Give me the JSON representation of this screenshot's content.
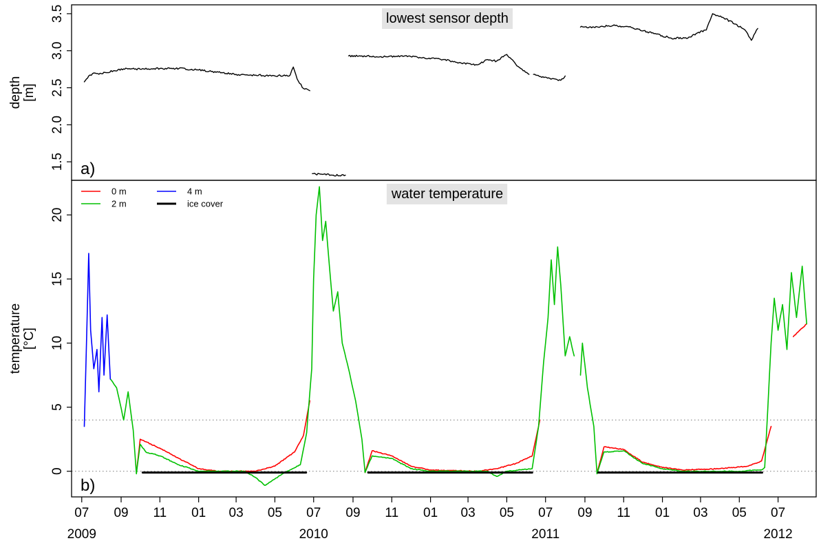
{
  "chart_data": [
    {
      "panel": "a)",
      "type": "line",
      "title": "lowest sensor depth",
      "ylabel": "depth",
      "yunit": "[m]",
      "ylim": [
        1.25,
        3.62
      ],
      "yticks": [
        "1.5",
        "2.0",
        "2.5",
        "3.0",
        "3.5"
      ],
      "xlim": [
        "2009-06-15",
        "2012-08-30"
      ],
      "grid": false,
      "series": [
        {
          "color": "#000000",
          "segments": [
            [
              [
                "2009-07-05",
                2.58
              ],
              [
                "2009-07-12",
                2.66
              ],
              [
                "2009-07-20",
                2.7
              ],
              [
                "2009-08-01",
                2.69
              ],
              [
                "2009-08-20",
                2.73
              ],
              [
                "2009-09-10",
                2.76
              ],
              [
                "2009-10-01",
                2.75
              ],
              [
                "2009-11-01",
                2.76
              ],
              [
                "2009-12-01",
                2.76
              ],
              [
                "2010-01-01",
                2.74
              ],
              [
                "2010-02-01",
                2.71
              ],
              [
                "2010-03-01",
                2.68
              ],
              [
                "2010-04-01",
                2.67
              ],
              [
                "2010-05-01",
                2.66
              ],
              [
                "2010-05-25",
                2.67
              ],
              [
                "2010-05-30",
                2.78
              ],
              [
                "2010-06-05",
                2.62
              ],
              [
                "2010-06-15",
                2.49
              ],
              [
                "2010-06-25",
                2.46
              ]
            ],
            [
              [
                "2010-06-29",
                1.34
              ],
              [
                "2010-07-15",
                1.33
              ],
              [
                "2010-08-01",
                1.32
              ],
              [
                "2010-08-20",
                1.32
              ]
            ],
            [
              [
                "2010-08-25",
                2.93
              ],
              [
                "2010-09-15",
                2.93
              ],
              [
                "2010-10-15",
                2.92
              ],
              [
                "2010-11-15",
                2.93
              ],
              [
                "2010-12-15",
                2.91
              ],
              [
                "2011-01-15",
                2.89
              ],
              [
                "2011-02-15",
                2.84
              ],
              [
                "2011-03-15",
                2.81
              ],
              [
                "2011-04-01",
                2.88
              ],
              [
                "2011-04-15",
                2.86
              ],
              [
                "2011-05-01",
                2.95
              ],
              [
                "2011-05-15",
                2.82
              ],
              [
                "2011-05-25",
                2.75
              ],
              [
                "2011-06-05",
                2.68
              ]
            ],
            [
              [
                "2011-06-12",
                2.68
              ],
              [
                "2011-06-25",
                2.64
              ],
              [
                "2011-07-15",
                2.62
              ],
              [
                "2011-07-25",
                2.6
              ],
              [
                "2011-08-01",
                2.66
              ]
            ],
            [
              [
                "2011-08-25",
                3.32
              ],
              [
                "2011-09-15",
                3.32
              ],
              [
                "2011-10-15",
                3.34
              ],
              [
                "2011-11-15",
                3.31
              ],
              [
                "2011-12-15",
                3.24
              ],
              [
                "2012-01-15",
                3.17
              ],
              [
                "2012-02-10",
                3.17
              ],
              [
                "2012-02-25",
                3.24
              ],
              [
                "2012-03-10",
                3.28
              ],
              [
                "2012-03-20",
                3.5
              ],
              [
                "2012-04-05",
                3.45
              ],
              [
                "2012-04-25",
                3.36
              ],
              [
                "2012-05-10",
                3.28
              ],
              [
                "2012-05-20",
                3.14
              ],
              [
                "2012-05-30",
                3.3
              ]
            ]
          ]
        }
      ]
    },
    {
      "panel": "b)",
      "type": "line",
      "title": "water temperature",
      "ylabel": "temperature",
      "yunit": "[°C]",
      "ylim": [
        -2.0,
        22.7
      ],
      "yticks": [
        "0",
        "5",
        "10",
        "15",
        "20"
      ],
      "xlim": [
        "2009-06-15",
        "2012-08-30"
      ],
      "grid": false,
      "reference_lines": [
        0,
        4
      ],
      "legend": {
        "position": "top-left",
        "items": [
          {
            "label": "0 m",
            "color": "#ff0000"
          },
          {
            "label": "2 m",
            "color": "#00c000"
          },
          {
            "label": "4 m",
            "color": "#0000ff"
          },
          {
            "label": "ice cover",
            "color": "#000000"
          }
        ]
      },
      "series": [
        {
          "name": "0 m",
          "color": "#ff0000",
          "segments": [
            [
              [
                "2009-09-25",
                -0.1
              ],
              [
                "2009-10-01",
                2.5
              ],
              [
                "2009-10-10",
                2.3
              ],
              [
                "2009-11-01",
                1.8
              ],
              [
                "2009-12-01",
                1.0
              ],
              [
                "2010-01-01",
                0.2
              ],
              [
                "2010-02-01",
                0.0
              ],
              [
                "2010-04-01",
                0.0
              ],
              [
                "2010-05-01",
                0.4
              ],
              [
                "2010-06-01",
                1.5
              ],
              [
                "2010-06-15",
                2.8
              ],
              [
                "2010-06-25",
                5.5
              ]
            ],
            [
              [
                "2010-09-20",
                -0.1
              ],
              [
                "2010-10-01",
                1.6
              ],
              [
                "2010-11-01",
                1.2
              ],
              [
                "2010-12-01",
                0.4
              ],
              [
                "2011-01-01",
                0.1
              ],
              [
                "2011-03-15",
                0.0
              ],
              [
                "2011-04-15",
                0.2
              ],
              [
                "2011-05-15",
                0.6
              ],
              [
                "2011-06-10",
                1.2
              ],
              [
                "2011-06-22",
                4.0
              ]
            ],
            [
              [
                "2011-09-20",
                -0.1
              ],
              [
                "2011-10-01",
                1.9
              ],
              [
                "2011-11-01",
                1.7
              ],
              [
                "2011-12-01",
                0.7
              ],
              [
                "2012-01-01",
                0.3
              ],
              [
                "2012-02-01",
                0.1
              ],
              [
                "2012-04-01",
                0.2
              ],
              [
                "2012-05-15",
                0.4
              ],
              [
                "2012-06-05",
                0.8
              ],
              [
                "2012-06-20",
                3.5
              ]
            ],
            [
              [
                "2012-07-25",
                10.5
              ],
              [
                "2012-08-15",
                11.5
              ]
            ]
          ]
        },
        {
          "name": "2 m",
          "color": "#00c000",
          "segments": [
            [
              [
                "2009-08-15",
                7.2
              ],
              [
                "2009-08-25",
                6.5
              ],
              [
                "2009-09-05",
                4.0
              ],
              [
                "2009-09-12",
                6.2
              ],
              [
                "2009-09-20",
                3.2
              ],
              [
                "2009-09-25",
                -0.2
              ],
              [
                "2009-10-01",
                2.1
              ],
              [
                "2009-10-10",
                1.5
              ],
              [
                "2009-11-01",
                1.2
              ],
              [
                "2009-12-01",
                0.5
              ],
              [
                "2010-01-01",
                0.0
              ],
              [
                "2010-03-15",
                0.0
              ],
              [
                "2010-04-01",
                -0.5
              ],
              [
                "2010-04-15",
                -1.1
              ],
              [
                "2010-05-01",
                -0.6
              ],
              [
                "2010-05-20",
                0.0
              ],
              [
                "2010-06-10",
                0.5
              ],
              [
                "2010-06-20",
                3.0
              ],
              [
                "2010-06-28",
                8.0
              ],
              [
                "2010-07-01",
                15.0
              ],
              [
                "2010-07-05",
                20.0
              ],
              [
                "2010-07-10",
                22.2
              ],
              [
                "2010-07-15",
                18.0
              ],
              [
                "2010-07-20",
                19.5
              ],
              [
                "2010-07-25",
                16.5
              ],
              [
                "2010-08-01",
                12.5
              ],
              [
                "2010-08-08",
                14.0
              ],
              [
                "2010-08-15",
                10.0
              ],
              [
                "2010-08-25",
                8.0
              ],
              [
                "2010-09-05",
                5.5
              ],
              [
                "2010-09-15",
                2.5
              ],
              [
                "2010-09-20",
                -0.1
              ],
              [
                "2010-10-01",
                1.2
              ],
              [
                "2010-11-01",
                1.0
              ],
              [
                "2010-12-01",
                0.2
              ],
              [
                "2011-01-01",
                0.0
              ],
              [
                "2011-04-01",
                0.0
              ],
              [
                "2011-04-15",
                -0.4
              ],
              [
                "2011-05-01",
                0.0
              ],
              [
                "2011-06-10",
                0.2
              ],
              [
                "2011-06-20",
                3.5
              ],
              [
                "2011-06-28",
                8.5
              ],
              [
                "2011-07-05",
                12.0
              ],
              [
                "2011-07-10",
                16.5
              ],
              [
                "2011-07-15",
                13.0
              ],
              [
                "2011-07-20",
                17.5
              ],
              [
                "2011-07-25",
                14.5
              ],
              [
                "2011-08-01",
                9.0
              ],
              [
                "2011-08-08",
                10.5
              ],
              [
                "2011-08-15",
                9.0
              ]
            ],
            [
              [
                "2011-08-25",
                7.5
              ],
              [
                "2011-08-28",
                10.0
              ],
              [
                "2011-09-05",
                6.5
              ],
              [
                "2011-09-15",
                3.5
              ],
              [
                "2011-09-20",
                -0.2
              ],
              [
                "2011-10-01",
                1.5
              ],
              [
                "2011-11-01",
                1.6
              ],
              [
                "2011-12-01",
                0.6
              ],
              [
                "2012-01-01",
                0.2
              ],
              [
                "2012-02-01",
                0.0
              ],
              [
                "2012-05-01",
                0.0
              ],
              [
                "2012-06-05",
                0.1
              ],
              [
                "2012-06-10",
                0.3
              ],
              [
                "2012-06-15",
                5.0
              ],
              [
                "2012-06-20",
                10.0
              ],
              [
                "2012-06-25",
                13.5
              ],
              [
                "2012-07-01",
                11.0
              ],
              [
                "2012-07-08",
                13.0
              ],
              [
                "2012-07-15",
                9.5
              ],
              [
                "2012-07-22",
                15.5
              ],
              [
                "2012-07-30",
                12.0
              ],
              [
                "2012-08-08",
                16.0
              ],
              [
                "2012-08-15",
                11.5
              ]
            ]
          ]
        },
        {
          "name": "4 m",
          "color": "#0000ff",
          "segments": [
            [
              [
                "2009-07-05",
                3.5
              ],
              [
                "2009-07-08",
                9.0
              ],
              [
                "2009-07-12",
                17.0
              ],
              [
                "2009-07-15",
                11.0
              ],
              [
                "2009-07-20",
                8.0
              ],
              [
                "2009-07-25",
                9.5
              ],
              [
                "2009-07-28",
                6.2
              ],
              [
                "2009-08-02",
                12.0
              ],
              [
                "2009-08-05",
                7.5
              ],
              [
                "2009-08-10",
                12.2
              ],
              [
                "2009-08-15",
                7.2
              ]
            ]
          ]
        },
        {
          "name": "ice cover",
          "color": "#000000",
          "segments": [
            [
              [
                "2009-10-05",
                -0.1
              ],
              [
                "2010-06-19",
                -0.1
              ]
            ],
            [
              [
                "2010-09-25",
                -0.1
              ],
              [
                "2011-06-10",
                -0.1
              ]
            ],
            [
              [
                "2011-09-22",
                -0.1
              ],
              [
                "2012-06-06",
                -0.1
              ]
            ]
          ]
        }
      ]
    }
  ],
  "x_axis": {
    "month_labels": [
      {
        "date": "2009-07-01",
        "label": "07"
      },
      {
        "date": "2009-09-01",
        "label": "09"
      },
      {
        "date": "2009-11-01",
        "label": "11"
      },
      {
        "date": "2010-01-01",
        "label": "01"
      },
      {
        "date": "2010-03-01",
        "label": "03"
      },
      {
        "date": "2010-05-01",
        "label": "05"
      },
      {
        "date": "2010-07-01",
        "label": "07"
      },
      {
        "date": "2010-09-01",
        "label": "09"
      },
      {
        "date": "2010-11-01",
        "label": "11"
      },
      {
        "date": "2011-01-01",
        "label": "01"
      },
      {
        "date": "2011-03-01",
        "label": "03"
      },
      {
        "date": "2011-05-01",
        "label": "05"
      },
      {
        "date": "2011-07-01",
        "label": "07"
      },
      {
        "date": "2011-09-01",
        "label": "09"
      },
      {
        "date": "2011-11-01",
        "label": "11"
      },
      {
        "date": "2012-01-01",
        "label": "01"
      },
      {
        "date": "2012-03-01",
        "label": "03"
      },
      {
        "date": "2012-05-01",
        "label": "05"
      },
      {
        "date": "2012-07-01",
        "label": "07"
      }
    ],
    "year_labels": [
      {
        "date": "2009-07-01",
        "label": "2009"
      },
      {
        "date": "2010-07-01",
        "label": "2010"
      },
      {
        "date": "2011-07-01",
        "label": "2011"
      },
      {
        "date": "2012-07-01",
        "label": "2012"
      }
    ]
  }
}
